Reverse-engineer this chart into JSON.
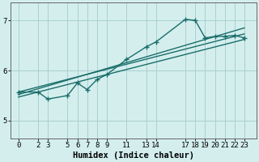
{
  "xlabel": "Humidex (Indice chaleur)",
  "bg_color": "#d4eeee",
  "grid_color": "#aad0d0",
  "line_color": "#1a6e6a",
  "xticks": [
    0,
    2,
    3,
    5,
    6,
    7,
    8,
    9,
    11,
    13,
    14,
    17,
    18,
    19,
    20,
    21,
    22,
    23
  ],
  "yticks": [
    5,
    6,
    7
  ],
  "ylim": [
    4.65,
    7.35
  ],
  "xlim": [
    -0.8,
    24.2
  ],
  "line1_x": [
    0,
    2,
    3,
    5,
    6,
    7,
    8,
    9,
    11,
    13,
    14,
    17,
    18,
    19,
    20,
    21,
    22,
    23
  ],
  "line1_y": [
    5.57,
    5.57,
    5.43,
    5.5,
    5.75,
    5.62,
    5.82,
    5.92,
    6.22,
    6.47,
    6.57,
    7.02,
    7.0,
    6.65,
    6.68,
    6.68,
    6.7,
    6.65
  ],
  "line2_x": [
    0,
    23
  ],
  "line2_y": [
    5.57,
    6.73
  ],
  "line3_x": [
    0,
    23
  ],
  "line3_y": [
    5.47,
    6.62
  ],
  "line4_x": [
    0,
    23
  ],
  "line4_y": [
    5.52,
    6.85
  ],
  "tick_fontsize": 6.5,
  "label_fontsize": 7.5
}
